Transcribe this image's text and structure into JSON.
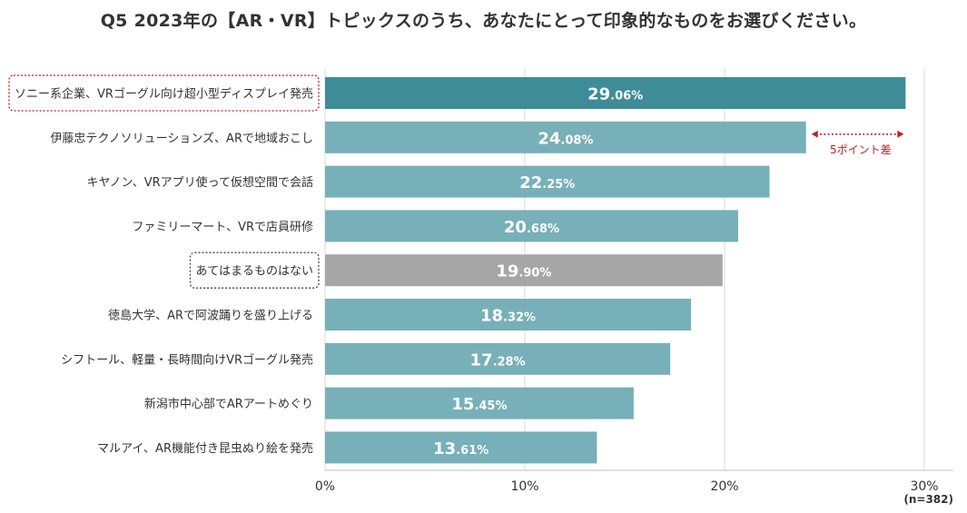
{
  "chart_data": {
    "type": "bar",
    "orientation": "horizontal",
    "title": "Q5 2023年の【AR・VR】トピックスのうち、あなたにとって印象的なものをお選びください。",
    "categories": [
      "ソニー系企業、VRゴーグル向け超小型ディスプレイ発売",
      "伊藤忠テクノソリューションズ、ARで地域おこし",
      "キヤノン、VRアプリ使って仮想空間で会話",
      "ファミリーマート、VRで店員研修",
      "あてはまるものはない",
      "徳島大学、ARで阿波踊りを盛り上げる",
      "シフトール、軽量・長時間向けVRゴーグル発売",
      "新潟市中心部でARアートめぐり",
      "マルアイ、AR機能付き昆虫ぬり絵を発売"
    ],
    "values": [
      29.06,
      24.08,
      22.25,
      20.68,
      19.9,
      18.32,
      17.28,
      15.45,
      13.61
    ],
    "value_labels": [
      {
        "int": "29",
        "dec": ".06%"
      },
      {
        "int": "24",
        "dec": ".08%"
      },
      {
        "int": "22",
        "dec": ".25%"
      },
      {
        "int": "20",
        "dec": ".68%"
      },
      {
        "int": "19",
        "dec": ".90%"
      },
      {
        "int": "18",
        "dec": ".32%"
      },
      {
        "int": "17",
        "dec": ".28%"
      },
      {
        "int": "15",
        "dec": ".45%"
      },
      {
        "int": "13",
        "dec": ".61%"
      }
    ],
    "xlim": [
      0,
      30
    ],
    "xticks": [
      0,
      10,
      20,
      30
    ],
    "xtick_labels": [
      "0%",
      "10%",
      "20%",
      "30%"
    ],
    "grid": "vertical",
    "colors": {
      "highlight": "#3e8c98",
      "default": "#77b0b8",
      "none": "#a6a6a6",
      "annotation": "#c0212a",
      "grid": "#d9d9d9"
    },
    "bar_style": [
      "highlight",
      "default",
      "default",
      "default",
      "none",
      "default",
      "default",
      "default",
      "default"
    ],
    "boxed_labels": [
      {
        "index": 0,
        "border_color": "#c0212a"
      },
      {
        "index": 4,
        "border_color": "#444444"
      }
    ],
    "annotation": {
      "text": "5ポイント差",
      "from_value": 24.08,
      "to_value": 29.06,
      "bar_index": 1
    },
    "sample_size": "(n=382)"
  }
}
